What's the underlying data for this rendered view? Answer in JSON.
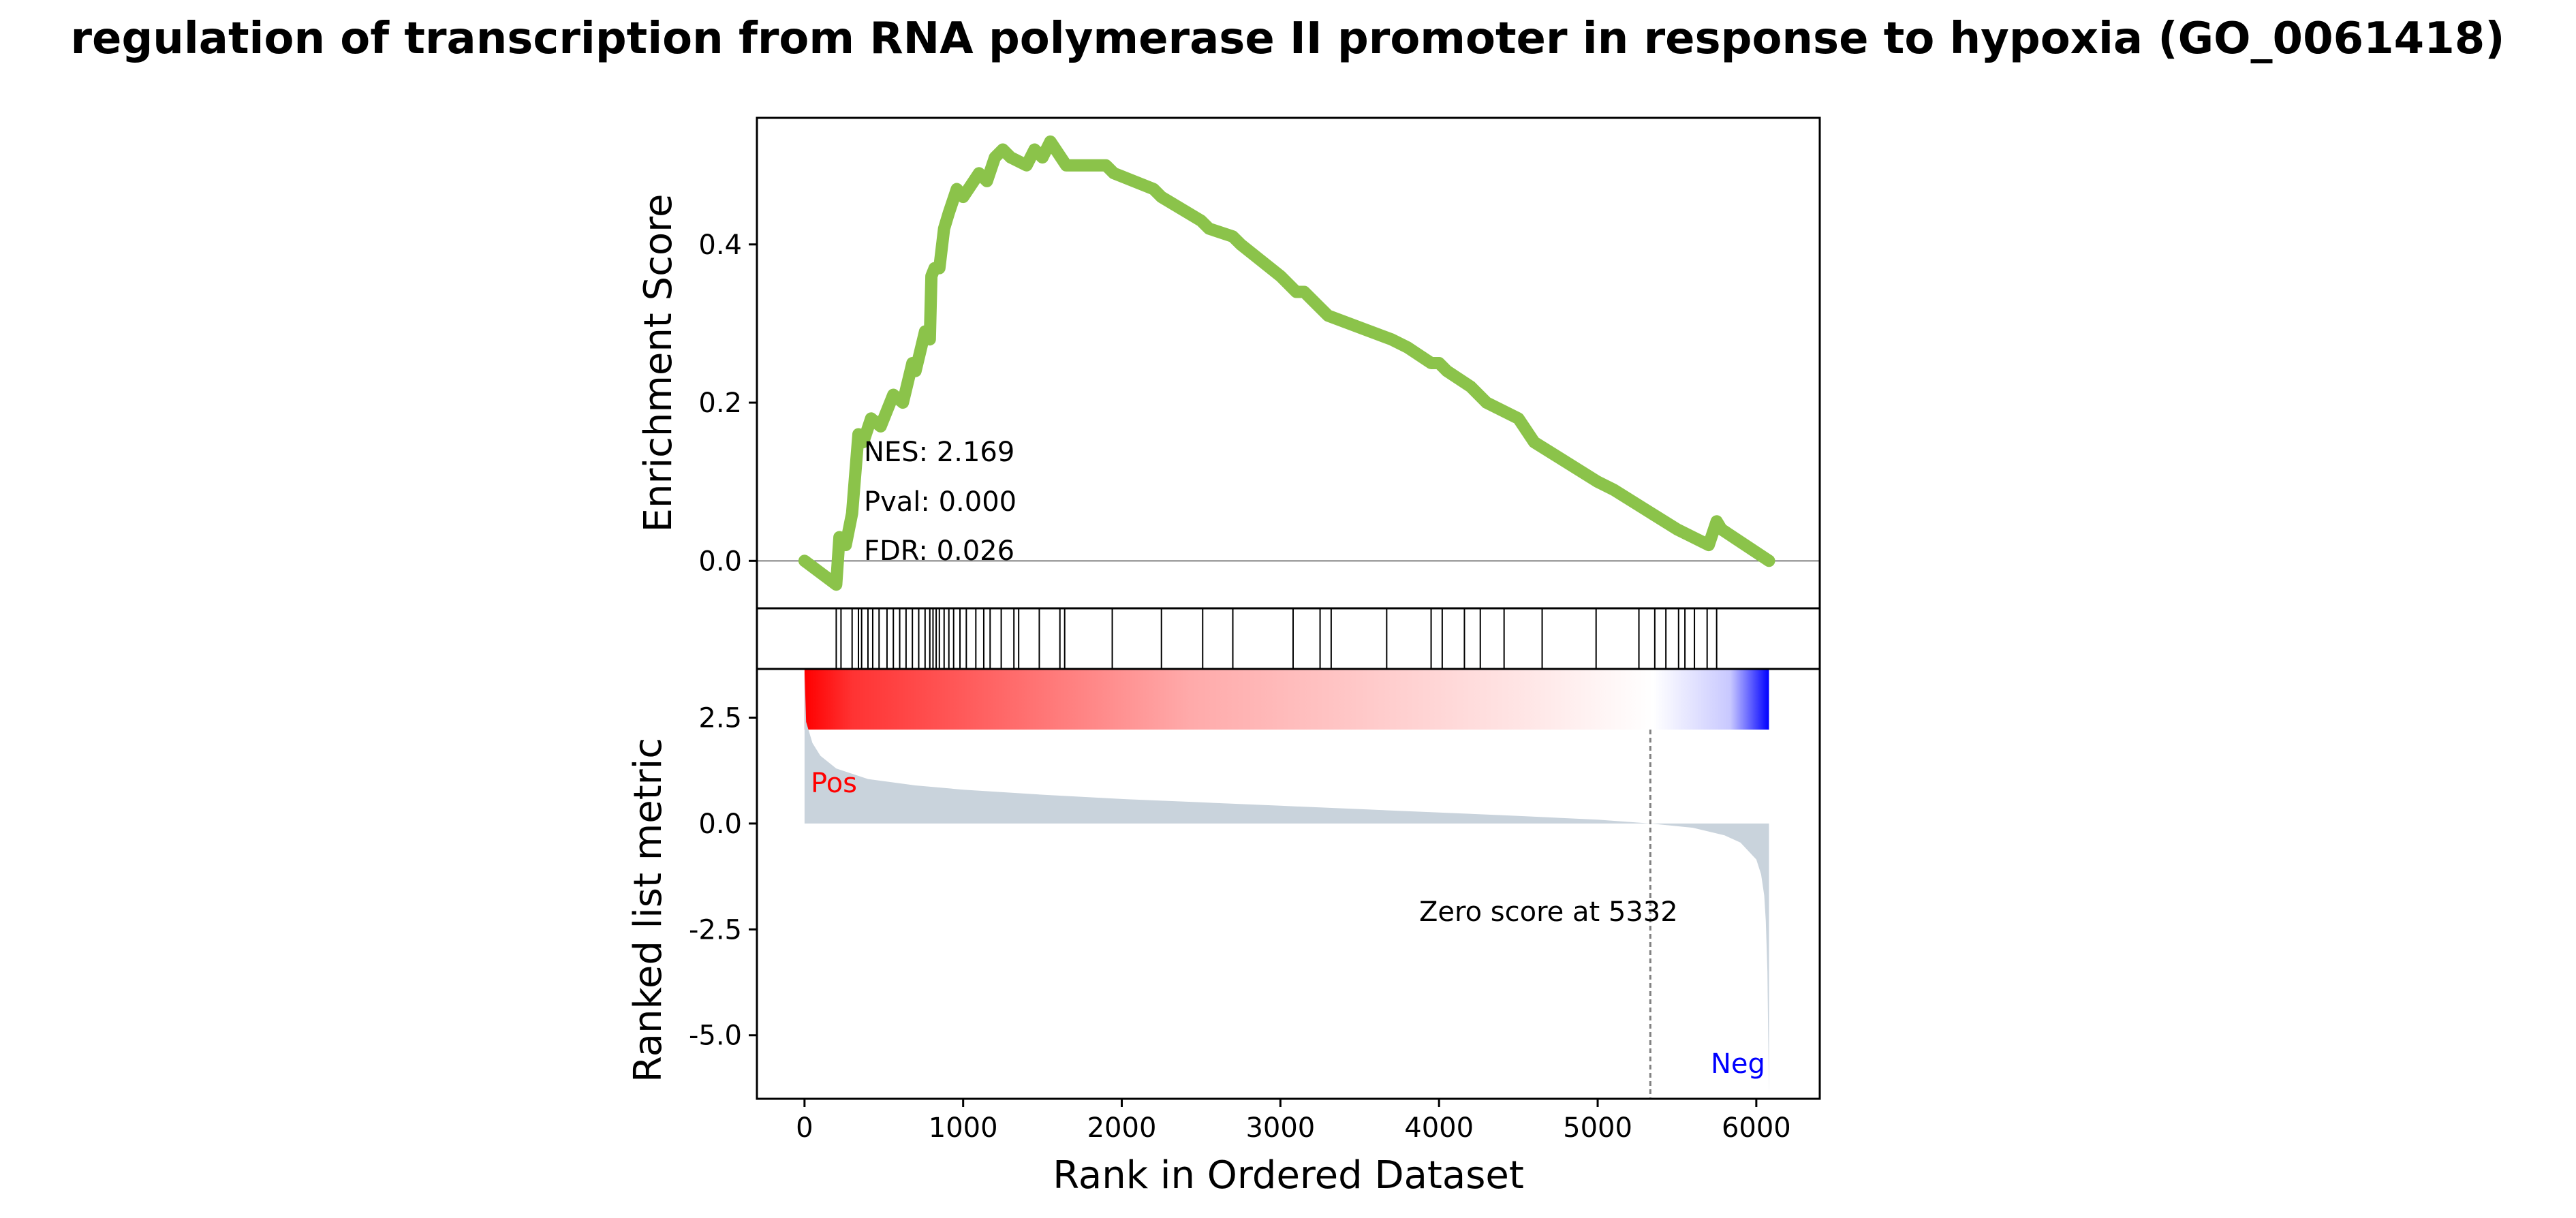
{
  "title": "regulation of transcription from RNA polymerase II promoter in response to hypoxia (GO_0061418)",
  "stats": {
    "nes": "NES: 2.169",
    "pval": "Pval: 0.000",
    "fdr": "FDR: 0.026"
  },
  "zero_score_label": "Zero score at 5332",
  "pos_label": "Pos",
  "neg_label": "Neg",
  "colors": {
    "es_line": "#8BC34A",
    "pos": "#ff0000",
    "neg": "#0000ff",
    "metric_fill": "#c9d3dc",
    "zero_line": "#808080"
  },
  "chart_data": [
    {
      "type": "line",
      "panel": "enrichment-score",
      "ylabel": "Enrichment Score",
      "yticks": [
        "0.0",
        "0.2",
        "0.4"
      ],
      "ylim": [
        -0.06,
        0.56
      ],
      "xlim": [
        -300,
        6400
      ],
      "x": [
        0,
        200,
        220,
        260,
        300,
        340,
        370,
        420,
        480,
        560,
        620,
        680,
        700,
        760,
        790,
        800,
        820,
        850,
        880,
        910,
        960,
        1000,
        1100,
        1150,
        1200,
        1250,
        1300,
        1400,
        1450,
        1500,
        1550,
        1650,
        1900,
        1950,
        2200,
        2250,
        2500,
        2550,
        2700,
        2750,
        3000,
        3100,
        3150,
        3250,
        3300,
        3700,
        3800,
        3950,
        4000,
        4050,
        4200,
        4300,
        4400,
        4500,
        4600,
        5000,
        5100,
        5500,
        5600,
        5700,
        5750,
        5780,
        6080
      ],
      "y": [
        0.0,
        -0.03,
        0.03,
        0.02,
        0.06,
        0.16,
        0.15,
        0.18,
        0.17,
        0.21,
        0.2,
        0.25,
        0.24,
        0.29,
        0.28,
        0.36,
        0.37,
        0.37,
        0.42,
        0.44,
        0.47,
        0.46,
        0.49,
        0.48,
        0.51,
        0.52,
        0.51,
        0.5,
        0.52,
        0.51,
        0.53,
        0.5,
        0.5,
        0.49,
        0.47,
        0.46,
        0.43,
        0.42,
        0.41,
        0.4,
        0.36,
        0.34,
        0.34,
        0.32,
        0.31,
        0.28,
        0.27,
        0.25,
        0.25,
        0.24,
        0.22,
        0.2,
        0.19,
        0.18,
        0.15,
        0.1,
        0.09,
        0.04,
        0.03,
        0.02,
        0.05,
        0.04,
        0.0
      ]
    },
    {
      "type": "hits",
      "panel": "gene-hits",
      "positions": [
        200,
        230,
        300,
        340,
        360,
        400,
        430,
        470,
        520,
        560,
        600,
        640,
        680,
        720,
        760,
        790,
        810,
        830,
        850,
        880,
        910,
        940,
        980,
        1020,
        1080,
        1130,
        1170,
        1240,
        1320,
        1350,
        1480,
        1610,
        1640,
        1940,
        2250,
        2510,
        2700,
        3080,
        3250,
        3320,
        3670,
        3950,
        4020,
        4160,
        4260,
        4410,
        4650,
        4990,
        5260,
        5360,
        5430,
        5510,
        5550,
        5610,
        5690,
        5750
      ]
    },
    {
      "type": "gradient",
      "panel": "rank-colorbar",
      "stops": [
        {
          "pos": 0.0,
          "color": "#ff0000"
        },
        {
          "pos": 0.05,
          "color": "#ff3333"
        },
        {
          "pos": 0.4,
          "color": "#ffaaaa"
        },
        {
          "pos": 0.75,
          "color": "#ffe6e6"
        },
        {
          "pos": 0.88,
          "color": "#ffffff"
        },
        {
          "pos": 0.96,
          "color": "#c8c8ff"
        },
        {
          "pos": 1.0,
          "color": "#0000ff"
        }
      ]
    },
    {
      "type": "area",
      "panel": "ranked-metric",
      "ylabel": "Ranked list metric",
      "xlabel": "Rank in Ordered Dataset",
      "yticks": [
        "2.5",
        "0.0",
        "-2.5",
        "-5.0"
      ],
      "ytick_values": [
        2.5,
        0.0,
        -2.5,
        -5.0
      ],
      "xticks": [
        "0",
        "1000",
        "2000",
        "3000",
        "4000",
        "5000",
        "6000"
      ],
      "xtick_values": [
        0,
        1000,
        2000,
        3000,
        4000,
        5000,
        6000
      ],
      "ylim": [
        -6.5,
        3.65
      ],
      "xlim": [
        -300,
        6400
      ],
      "zero_cross": 5332,
      "x": [
        0,
        10,
        50,
        100,
        200,
        400,
        700,
        1000,
        1500,
        2000,
        2500,
        3000,
        3500,
        4000,
        4500,
        5000,
        5332,
        5600,
        5800,
        5900,
        6000,
        6030,
        6050,
        6060,
        6070,
        6075,
        6080
      ],
      "y": [
        3.6,
        2.4,
        1.9,
        1.6,
        1.3,
        1.05,
        0.9,
        0.8,
        0.68,
        0.58,
        0.5,
        0.42,
        0.34,
        0.26,
        0.18,
        0.09,
        0.0,
        -0.1,
        -0.28,
        -0.45,
        -0.85,
        -1.2,
        -1.7,
        -2.3,
        -3.5,
        -5.0,
        -6.4
      ]
    }
  ]
}
